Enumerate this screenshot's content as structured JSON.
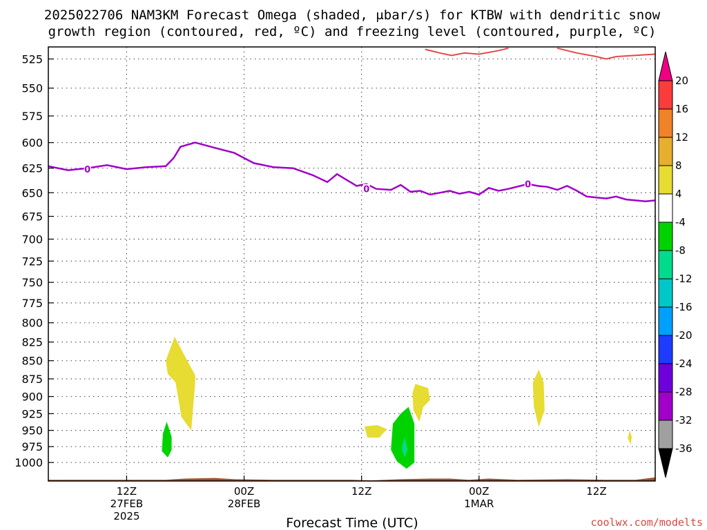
{
  "title_line1": "2025022706 NAM3KM Forecast Omega (shaded, μbar/s) for KTBW with dendritic snow",
  "title_line2": "growth region (contoured, red, ºC) and freezing level (contoured, purple, ºC)",
  "credit": "coolwx.com/modelts",
  "chart_data": {
    "type": "contour",
    "x_axis": {
      "label": "Forecast Time (UTC)",
      "range_hours": [
        -8,
        54
      ],
      "ticks": [
        {
          "h": 0,
          "l1": "12Z",
          "l2": "27FEB",
          "l3": "2025"
        },
        {
          "h": 12,
          "l1": "00Z",
          "l2": "28FEB",
          "l3": ""
        },
        {
          "h": 24,
          "l1": "12Z",
          "l2": "",
          "l3": ""
        },
        {
          "h": 36,
          "l1": "00Z",
          "l2": "1MAR",
          "l3": ""
        },
        {
          "h": 48,
          "l1": "12Z",
          "l2": "",
          "l3": ""
        }
      ]
    },
    "y_axis": {
      "unit": "hPa",
      "log": true,
      "range": [
        515,
        1030
      ],
      "ticks": [
        525,
        550,
        575,
        600,
        625,
        650,
        675,
        700,
        725,
        750,
        775,
        800,
        825,
        850,
        875,
        900,
        925,
        950,
        975,
        1000
      ]
    },
    "grid": true,
    "colorbar": {
      "colors": [
        "#000000",
        "#a0a0a0",
        "#a000c8",
        "#6e00dc",
        "#1e3cff",
        "#00a0ff",
        "#00c8c8",
        "#00dc8c",
        "#00d200",
        "#ffffff",
        "#e6dc32",
        "#e6af2d",
        "#f08228",
        "#fa3c3c",
        "#f00082"
      ],
      "labels": [
        "-36",
        "-32",
        "-28",
        "-24",
        "-20",
        "-16",
        "-12",
        "-8",
        "-4",
        "4",
        "8",
        "12",
        "16",
        "20"
      ]
    },
    "freezing_level": {
      "name": "0",
      "color": "#a000c8",
      "points": [
        [
          -8,
          623
        ],
        [
          -6,
          627
        ],
        [
          -4,
          625
        ],
        [
          -2,
          622
        ],
        [
          0,
          626
        ],
        [
          2,
          624
        ],
        [
          4,
          623
        ],
        [
          4.8,
          615
        ],
        [
          5.5,
          604
        ],
        [
          7,
          600
        ],
        [
          9,
          605
        ],
        [
          11,
          610
        ],
        [
          13,
          620
        ],
        [
          15,
          624
        ],
        [
          17,
          625
        ],
        [
          19,
          632
        ],
        [
          20.5,
          639
        ],
        [
          21.5,
          631
        ],
        [
          22.5,
          637
        ],
        [
          23.5,
          643
        ],
        [
          24.5,
          641
        ],
        [
          25.5,
          646
        ],
        [
          27,
          647
        ],
        [
          28,
          642
        ],
        [
          29,
          649
        ],
        [
          30,
          648
        ],
        [
          31,
          652
        ],
        [
          32,
          650
        ],
        [
          33,
          648
        ],
        [
          34,
          651
        ],
        [
          35,
          649
        ],
        [
          36,
          652
        ],
        [
          37,
          645
        ],
        [
          38,
          648
        ],
        [
          39,
          646
        ],
        [
          41,
          641
        ],
        [
          42,
          643
        ],
        [
          43,
          644
        ],
        [
          44,
          647
        ],
        [
          45,
          643
        ],
        [
          46,
          648
        ],
        [
          47,
          654
        ],
        [
          48,
          655
        ],
        [
          49,
          656
        ],
        [
          50,
          654
        ],
        [
          51,
          657
        ],
        [
          52,
          658
        ],
        [
          53,
          659
        ],
        [
          54,
          658
        ]
      ],
      "labels": [
        [
          -4,
          626
        ],
        [
          24.5,
          646
        ],
        [
          41,
          641
        ]
      ]
    },
    "dgz_contour": {
      "color": "#e64646",
      "segments": [
        [
          [
            30.5,
            517
          ],
          [
            32,
            520
          ],
          [
            33.2,
            522
          ],
          [
            34.5,
            520
          ],
          [
            36,
            521
          ],
          [
            38,
            518
          ],
          [
            39,
            516
          ]
        ],
        [
          [
            44,
            516
          ],
          [
            46,
            520
          ],
          [
            48,
            523
          ],
          [
            49,
            525
          ],
          [
            50,
            523
          ],
          [
            52,
            522
          ],
          [
            54,
            521
          ]
        ]
      ]
    },
    "omega_shading": [
      {
        "color": "#e6dc32",
        "points": [
          [
            4.9,
            818
          ],
          [
            6.2,
            850
          ],
          [
            7,
            870
          ],
          [
            7,
            880
          ],
          [
            6.6,
            950
          ],
          [
            5.6,
            930
          ],
          [
            5,
            880
          ],
          [
            4.2,
            868
          ],
          [
            4,
            850
          ]
        ]
      },
      {
        "color": "#00d200",
        "points": [
          [
            4.1,
            937
          ],
          [
            4.6,
            960
          ],
          [
            4.6,
            980
          ],
          [
            4.2,
            992
          ],
          [
            3.6,
            982
          ],
          [
            3.7,
            955
          ]
        ]
      },
      {
        "color": "#e6dc32",
        "points": [
          [
            29.5,
            882
          ],
          [
            30.8,
            888
          ],
          [
            31,
            905
          ],
          [
            30.3,
            915
          ],
          [
            29.9,
            937
          ],
          [
            29.3,
            920
          ],
          [
            29.2,
            895
          ]
        ]
      },
      {
        "color": "#e6dc32",
        "points": [
          [
            24.3,
            944
          ],
          [
            25.6,
            942
          ],
          [
            26.6,
            948
          ],
          [
            25.8,
            961
          ],
          [
            24.6,
            961
          ]
        ]
      },
      {
        "color": "#00d200",
        "points": [
          [
            28.8,
            915
          ],
          [
            29.4,
            940
          ],
          [
            29.4,
            1000
          ],
          [
            28.6,
            1010
          ],
          [
            27.6,
            998
          ],
          [
            27,
            980
          ],
          [
            27.2,
            940
          ],
          [
            28,
            925
          ]
        ]
      },
      {
        "color": "#00dc8c",
        "points": [
          [
            28.4,
            960
          ],
          [
            28.7,
            980
          ],
          [
            28.4,
            992
          ],
          [
            28.1,
            978
          ]
        ]
      },
      {
        "color": "#e6dc32",
        "points": [
          [
            42.1,
            862
          ],
          [
            42.6,
            880
          ],
          [
            42.7,
            920
          ],
          [
            42.1,
            945
          ],
          [
            41.6,
            915
          ],
          [
            41.5,
            880
          ]
        ]
      },
      {
        "color": "#e6dc32",
        "points": [
          [
            51.4,
            950
          ],
          [
            51.6,
            960
          ],
          [
            51.5,
            972
          ],
          [
            51.2,
            962
          ]
        ]
      }
    ],
    "terrain": {
      "color": "#a0522d",
      "points": [
        [
          -8,
          1028
        ],
        [
          4,
          1028
        ],
        [
          6,
          1026
        ],
        [
          9,
          1025
        ],
        [
          11,
          1027
        ],
        [
          15,
          1028
        ],
        [
          23,
          1028
        ],
        [
          25,
          1029
        ],
        [
          28,
          1027
        ],
        [
          31,
          1026
        ],
        [
          33,
          1026
        ],
        [
          35,
          1028
        ],
        [
          37,
          1026
        ],
        [
          40,
          1028
        ],
        [
          45,
          1027
        ],
        [
          49,
          1028
        ],
        [
          52,
          1028
        ],
        [
          54,
          1024
        ]
      ]
    }
  }
}
